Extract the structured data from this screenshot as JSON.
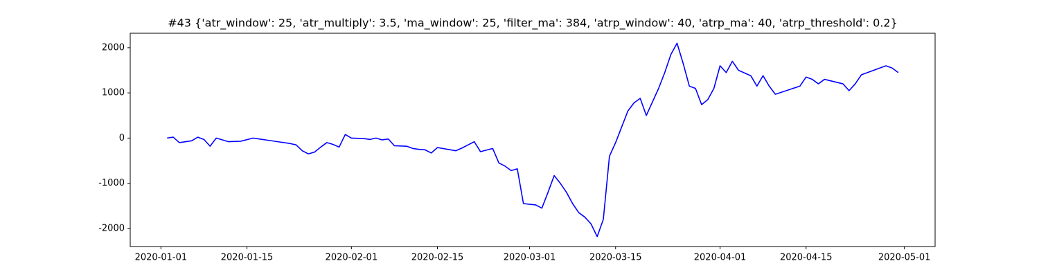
{
  "chart_data": {
    "type": "line",
    "title": "#43 {'atr_window': 25, 'atr_multiply': 3.5, 'ma_window': 25, 'filter_ma': 384, 'atrp_window': 40, 'atrp_ma': 40, 'atrp_threshold': 0.2}",
    "x": [
      "2020-01-02",
      "2020-01-03",
      "2020-01-04",
      "2020-01-06",
      "2020-01-07",
      "2020-01-08",
      "2020-01-09",
      "2020-01-10",
      "2020-01-11",
      "2020-01-12",
      "2020-01-14",
      "2020-01-16",
      "2020-01-17",
      "2020-01-18",
      "2020-01-20",
      "2020-01-22",
      "2020-01-23",
      "2020-01-24",
      "2020-01-25",
      "2020-01-26",
      "2020-01-27",
      "2020-01-28",
      "2020-01-29",
      "2020-01-30",
      "2020-01-31",
      "2020-02-01",
      "2020-02-03",
      "2020-02-04",
      "2020-02-05",
      "2020-02-06",
      "2020-02-07",
      "2020-02-08",
      "2020-02-10",
      "2020-02-11",
      "2020-02-12",
      "2020-02-13",
      "2020-02-14",
      "2020-02-15",
      "2020-02-18",
      "2020-02-19",
      "2020-02-20",
      "2020-02-21",
      "2020-02-22",
      "2020-02-24",
      "2020-02-25",
      "2020-02-26",
      "2020-02-27",
      "2020-02-28",
      "2020-02-29",
      "2020-03-02",
      "2020-03-03",
      "2020-03-04",
      "2020-03-05",
      "2020-03-06",
      "2020-03-07",
      "2020-03-08",
      "2020-03-09",
      "2020-03-10",
      "2020-03-11",
      "2020-03-12",
      "2020-03-13",
      "2020-03-14",
      "2020-03-15",
      "2020-03-16",
      "2020-03-17",
      "2020-03-18",
      "2020-03-19",
      "2020-03-20",
      "2020-03-21",
      "2020-03-22",
      "2020-03-23",
      "2020-03-24",
      "2020-03-25",
      "2020-03-26",
      "2020-03-27",
      "2020-03-28",
      "2020-03-29",
      "2020-03-30",
      "2020-03-31",
      "2020-04-01",
      "2020-04-02",
      "2020-04-03",
      "2020-04-04",
      "2020-04-06",
      "2020-04-07",
      "2020-04-08",
      "2020-04-09",
      "2020-04-10",
      "2020-04-14",
      "2020-04-15",
      "2020-04-16",
      "2020-04-17",
      "2020-04-18",
      "2020-04-21",
      "2020-04-22",
      "2020-04-23",
      "2020-04-24",
      "2020-04-27",
      "2020-04-28",
      "2020-04-29",
      "2020-04-30"
    ],
    "series": [
      {
        "color": "#0000ff",
        "values": [
          0,
          20,
          -100,
          -60,
          20,
          -30,
          -180,
          0,
          -40,
          -80,
          -70,
          0,
          -20,
          -40,
          -80,
          -120,
          -150,
          -280,
          -350,
          -310,
          -200,
          -100,
          -140,
          -200,
          80,
          0,
          -10,
          -30,
          0,
          -40,
          -20,
          -170,
          -180,
          -230,
          -250,
          -260,
          -330,
          -210,
          -280,
          -220,
          -150,
          -80,
          -300,
          -230,
          -550,
          -620,
          -720,
          -680,
          -1450,
          -1480,
          -1550,
          -1200,
          -830,
          -1000,
          -1200,
          -1450,
          -1650,
          -1750,
          -1900,
          -2180,
          -1800,
          -400,
          -100,
          250,
          600,
          780,
          880,
          500,
          800,
          1100,
          1450,
          1850,
          2100,
          1650,
          1150,
          1100,
          740,
          850,
          1100,
          1600,
          1450,
          1700,
          1500,
          1380,
          1150,
          1380,
          1150,
          970,
          1150,
          1350,
          1300,
          1200,
          1300,
          1200,
          1050,
          1200,
          1400,
          1550,
          1600,
          1550,
          1450
        ]
      }
    ],
    "xlim": [
      "2019-12-27",
      "2020-05-06"
    ],
    "xticks": [
      "2020-01-01",
      "2020-01-15",
      "2020-02-01",
      "2020-02-15",
      "2020-03-01",
      "2020-03-15",
      "2020-04-01",
      "2020-04-15",
      "2020-05-01"
    ],
    "ylim": [
      -2400,
      2320
    ],
    "yticks": [
      -2000,
      -1000,
      0,
      1000,
      2000
    ]
  }
}
